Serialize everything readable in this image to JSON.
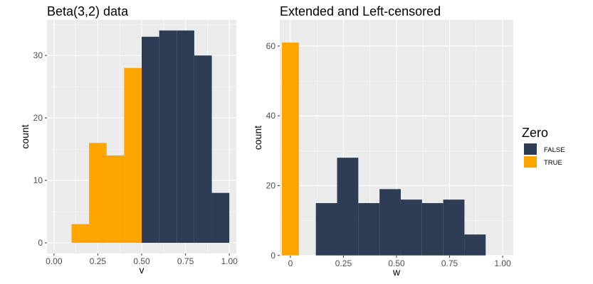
{
  "colors": {
    "TRUE": "#FFA500",
    "FALSE": "#2E3D55",
    "panel": "#EBEBEB",
    "grid": "#FFFFFF"
  },
  "legend": {
    "title": "Zero",
    "items": [
      {
        "label": "FALSE",
        "color": "#2E3D55"
      },
      {
        "label": "TRUE",
        "color": "#FFA500"
      }
    ]
  },
  "chart_data": [
    {
      "type": "bar",
      "title": "Beta(3,2) data",
      "xlabel": "v",
      "ylabel": "count",
      "xlim": [
        -0.04,
        1.04
      ],
      "ylim": [
        -1.7,
        35.7
      ],
      "xticks": [
        0.0,
        0.25,
        0.5,
        0.75,
        1.0
      ],
      "xtick_labels": [
        "0.00",
        "0.25",
        "0.50",
        "0.75",
        "1.00"
      ],
      "yticks": [
        0,
        10,
        20,
        30
      ],
      "yminor": [
        5,
        15,
        25,
        35
      ],
      "xminor": [
        0.125,
        0.375,
        0.625,
        0.875
      ],
      "grid": true,
      "series": [
        {
          "name": "TRUE",
          "bins": [
            {
              "x0": 0.1,
              "x1": 0.2,
              "count": 3
            },
            {
              "x0": 0.2,
              "x1": 0.3,
              "count": 16
            },
            {
              "x0": 0.3,
              "x1": 0.4,
              "count": 14
            },
            {
              "x0": 0.4,
              "x1": 0.5,
              "count": 28
            }
          ]
        },
        {
          "name": "FALSE",
          "bins": [
            {
              "x0": 0.5,
              "x1": 0.6,
              "count": 33
            },
            {
              "x0": 0.6,
              "x1": 0.7,
              "count": 34
            },
            {
              "x0": 0.7,
              "x1": 0.8,
              "count": 34
            },
            {
              "x0": 0.8,
              "x1": 0.9,
              "count": 30
            },
            {
              "x0": 0.9,
              "x1": 1.0,
              "count": 8
            }
          ]
        }
      ]
    },
    {
      "type": "bar",
      "title": "Extended and Left-censored",
      "xlabel": "w",
      "ylabel": "count",
      "xlim": [
        -0.05,
        1.05
      ],
      "ylim": [
        -0.05,
        67.5
      ],
      "xticks": [
        0,
        0.25,
        0.5,
        0.75,
        1.0
      ],
      "xtick_labels": [
        "0",
        "0.25",
        "0.50",
        "0.75",
        "1.00"
      ],
      "yticks": [
        0,
        20,
        40,
        60
      ],
      "yminor": [
        10,
        30,
        50
      ],
      "xminor": [
        0.125,
        0.375,
        0.625,
        0.875
      ],
      "grid": true,
      "series": [
        {
          "name": "TRUE",
          "bins": [
            {
              "x0": -0.04,
              "x1": 0.04,
              "count": 61
            }
          ]
        },
        {
          "name": "FALSE",
          "bins": [
            {
              "x0": 0.12,
              "x1": 0.22,
              "count": 15
            },
            {
              "x0": 0.22,
              "x1": 0.32,
              "count": 28
            },
            {
              "x0": 0.32,
              "x1": 0.42,
              "count": 15
            },
            {
              "x0": 0.42,
              "x1": 0.52,
              "count": 19
            },
            {
              "x0": 0.52,
              "x1": 0.62,
              "count": 16
            },
            {
              "x0": 0.62,
              "x1": 0.72,
              "count": 15
            },
            {
              "x0": 0.72,
              "x1": 0.82,
              "count": 16
            },
            {
              "x0": 0.82,
              "x1": 0.92,
              "count": 6
            }
          ]
        }
      ]
    }
  ]
}
